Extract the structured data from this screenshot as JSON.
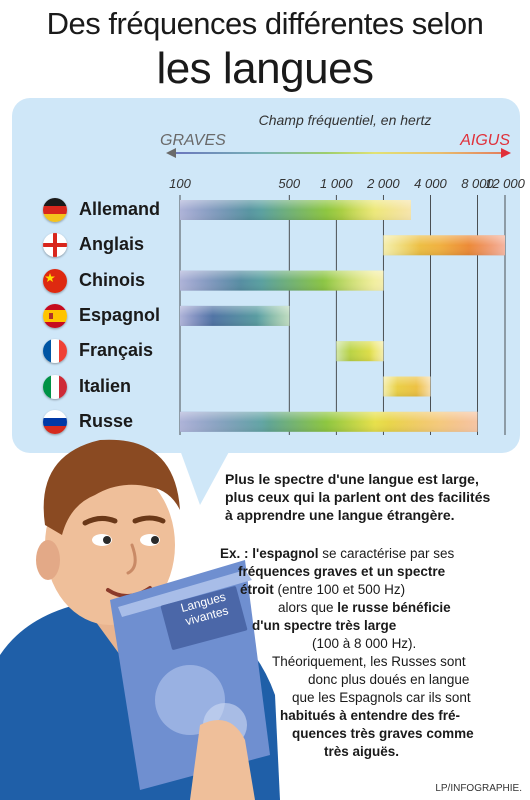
{
  "header": {
    "title_line1": "Des fréquences différentes selon",
    "title_line2": "les langues"
  },
  "chart_data": {
    "type": "range-bar",
    "subtitle": "Champ fréquentiel, en hertz",
    "x_left_label": "GRAVES",
    "x_right_label": "AIGUS",
    "x_scale": "log",
    "x_ticks": [
      100,
      500,
      1000,
      2000,
      4000,
      8000,
      12000
    ],
    "x_tick_labels": [
      "100",
      "500",
      "1 000",
      "2 000",
      "4 000",
      "8 000",
      "12 000"
    ],
    "grid": true,
    "series": [
      {
        "name": "Allemand",
        "flag": "germany-flag",
        "min": 100,
        "max": 3000
      },
      {
        "name": "Anglais",
        "flag": "england-flag",
        "min": 2000,
        "max": 12000
      },
      {
        "name": "Chinois",
        "flag": "china-flag",
        "min": 100,
        "max": 2000
      },
      {
        "name": "Espagnol",
        "flag": "spain-flag",
        "min": 100,
        "max": 500
      },
      {
        "name": "Français",
        "flag": "france-flag",
        "min": 1000,
        "max": 2000
      },
      {
        "name": "Italien",
        "flag": "italy-flag",
        "min": 2000,
        "max": 4000
      },
      {
        "name": "Russe",
        "flag": "russia-flag",
        "min": 100,
        "max": 8000
      }
    ]
  },
  "text": {
    "para1": [
      "Plus le spectre d'une langue est large,",
      "plus ceux qui la parlent ont des facilités",
      "à apprendre une langue étrangère."
    ],
    "para2": [
      {
        "parts": [
          {
            "t": "Ex. : ",
            "b": true
          },
          {
            "t": "l'espagnol",
            "b": true
          },
          {
            "t": " se caractérise par ses",
            "b": false
          }
        ]
      },
      {
        "parts": [
          {
            "t": "fréquences graves et un spectre",
            "b": true
          }
        ]
      },
      {
        "parts": [
          {
            "t": "étroit",
            "b": true
          },
          {
            "t": " (entre 100 et 500 Hz)",
            "b": false
          }
        ]
      },
      {
        "parts": [
          {
            "t": "alors que ",
            "b": false
          },
          {
            "t": "le russe bénéficie",
            "b": true
          }
        ]
      },
      {
        "parts": [
          {
            "t": "d'un spectre très large",
            "b": true
          }
        ]
      },
      {
        "parts": [
          {
            "t": "(100 à 8 000 Hz).",
            "b": false
          }
        ]
      },
      {
        "parts": [
          {
            "t": "Théoriquement, les Russes sont",
            "b": false
          }
        ]
      },
      {
        "parts": [
          {
            "t": "donc plus doués en langue",
            "b": false
          }
        ]
      },
      {
        "parts": [
          {
            "t": "que les Espagnols car ils sont",
            "b": false
          }
        ]
      },
      {
        "parts": [
          {
            "t": "habitués à entendre des fré-",
            "b": true
          }
        ]
      },
      {
        "parts": [
          {
            "t": "quences très graves comme",
            "b": true
          }
        ]
      },
      {
        "parts": [
          {
            "t": "très aiguës.",
            "b": true
          }
        ]
      }
    ],
    "book_title": "Langues vivantes",
    "credit": "LP/INFOGRAPHIE."
  },
  "colors": {
    "panel": "#cfe7f8",
    "title_text": "#1a1a1a",
    "graves": "#6a6a6a",
    "aigus": "#e0303a",
    "shirt": "#1f5fa8",
    "book": "#6f8fd0"
  }
}
